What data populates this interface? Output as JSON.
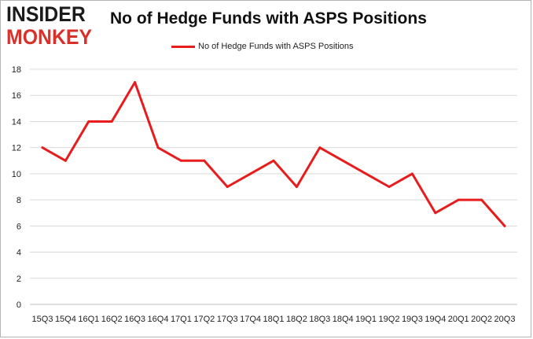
{
  "logo": {
    "line1": "INSIDER",
    "line2": "MONKEY"
  },
  "colors": {
    "series": "#e81c1c",
    "grid": "#d9d9d9",
    "logo_red": "#d8312a",
    "logo_dark": "#1b1b1b"
  },
  "chart_data": {
    "type": "line",
    "title": "No of Hedge Funds with ASPS Positions",
    "xlabel": "",
    "ylabel": "",
    "ylim": [
      0,
      18
    ],
    "yticks": [
      0,
      2,
      4,
      6,
      8,
      10,
      12,
      14,
      16,
      18
    ],
    "grid": "horizontal",
    "legend_position": "top-center",
    "categories": [
      "15Q3",
      "15Q4",
      "16Q1",
      "16Q2",
      "16Q3",
      "16Q4",
      "17Q1",
      "17Q2",
      "17Q3",
      "17Q4",
      "18Q1",
      "18Q2",
      "18Q3",
      "18Q4",
      "19Q1",
      "19Q2",
      "19Q3",
      "19Q4",
      "20Q1",
      "20Q2",
      "20Q3"
    ],
    "series": [
      {
        "name": "No of Hedge Funds with ASPS Positions",
        "values": [
          12,
          11,
          14,
          14,
          17,
          12,
          11,
          11,
          9,
          10,
          11,
          9,
          12,
          11,
          10,
          9,
          10,
          7,
          8,
          8,
          6
        ]
      }
    ]
  }
}
